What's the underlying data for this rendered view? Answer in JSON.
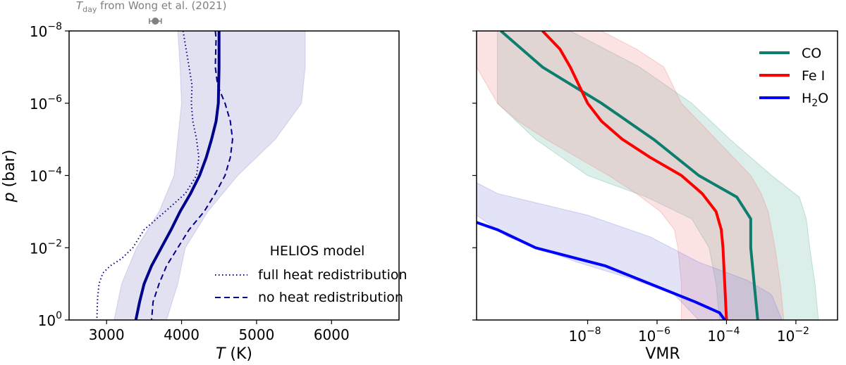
{
  "chart_data": [
    {
      "type": "line",
      "panel": "left",
      "xlabel_italic": "T",
      "xlabel_unit": " (K)",
      "ylabel_italic": "p",
      "ylabel_unit": " (bar)",
      "xlim": [
        2500,
        6900
      ],
      "xscale": "linear",
      "yscale": "log",
      "ylim": [
        1,
        1e-08
      ],
      "xticks": [
        3000,
        4000,
        5000,
        6000
      ],
      "yticks": [
        {
          "value": 1e-08,
          "base": "10",
          "exp": "−8"
        },
        {
          "value": 1e-06,
          "base": "10",
          "exp": "−6"
        },
        {
          "value": 0.0001,
          "base": "10",
          "exp": "−4"
        },
        {
          "value": 0.01,
          "base": "10",
          "exp": "−2"
        },
        {
          "value": 1,
          "base": "10",
          "exp": "0"
        }
      ],
      "band": {
        "color": "#1a1a9e",
        "logp": [
          -8,
          -7,
          -6,
          -5,
          -4,
          -3,
          -2,
          -1,
          0
        ],
        "lower": [
          3950,
          3980,
          4000,
          3950,
          3900,
          3700,
          3400,
          3200,
          3100
        ],
        "upper": [
          5650,
          5650,
          5600,
          5250,
          4750,
          4350,
          4050,
          3950,
          3800
        ]
      },
      "series": [
        {
          "name": "retrieved",
          "color": "#00008b",
          "style": "solid",
          "logp": [
            -8,
            -7,
            -6,
            -5.5,
            -5,
            -4.5,
            -4,
            -3.5,
            -3,
            -2.5,
            -2,
            -1.5,
            -1,
            -0.5,
            0
          ],
          "T": [
            4500,
            4500,
            4490,
            4460,
            4400,
            4330,
            4240,
            4120,
            3980,
            3860,
            3730,
            3600,
            3500,
            3440,
            3390
          ]
        },
        {
          "name": "full heat redistribution",
          "color": "#00008b",
          "style": "dotted",
          "logp": [
            -8,
            -7.5,
            -7,
            -6.5,
            -6,
            -5.5,
            -5,
            -4.5,
            -4,
            -3.5,
            -3,
            -2.5,
            -2,
            -1.7,
            -1.5,
            -1.3,
            -1,
            -0.6,
            0
          ],
          "T": [
            4020,
            4060,
            4100,
            4140,
            4130,
            4150,
            4200,
            4230,
            4200,
            4050,
            3780,
            3500,
            3350,
            3200,
            3050,
            2950,
            2900,
            2880,
            2870
          ]
        },
        {
          "name": "no heat redistribution",
          "color": "#00008b",
          "style": "dashed",
          "logp": [
            -8,
            -7.8,
            -7,
            -6.5,
            -6,
            -5.5,
            -5,
            -4.5,
            -4,
            -3.5,
            -3,
            -2.5,
            -2,
            -1.5,
            -1,
            -0.5,
            0
          ],
          "T": [
            4450,
            4460,
            4450,
            4480,
            4580,
            4650,
            4680,
            4650,
            4580,
            4450,
            4300,
            4100,
            3950,
            3800,
            3700,
            3620,
            3600
          ]
        }
      ],
      "legend": {
        "title": "HELIOS model",
        "entries": [
          "full heat redistribution",
          "no heat redistribution"
        ],
        "location": "lower-right"
      },
      "annotation": {
        "sym": "T",
        "sub": "day",
        "text": " from Wong et al. (2021)",
        "value_T": 3650,
        "err_T": 80
      }
    },
    {
      "type": "line",
      "panel": "right",
      "xlabel": "VMR",
      "xscale": "log",
      "yscale": "log",
      "xlim_log10": [
        -11.2,
        -0.8
      ],
      "ylim": [
        1,
        1e-08
      ],
      "xticks": [
        {
          "log10": -8,
          "base": "10",
          "exp": "−8"
        },
        {
          "log10": -6,
          "base": "10",
          "exp": "−6"
        },
        {
          "log10": -4,
          "base": "10",
          "exp": "−4"
        },
        {
          "log10": -2,
          "base": "10",
          "exp": "−2"
        }
      ],
      "series": [
        {
          "name": "CO",
          "color": "#0d7d6e",
          "band_color": "#5fb3a0",
          "logp": [
            -8,
            -7,
            -6,
            -5,
            -4,
            -3.4,
            -2.8,
            -2,
            -1,
            0
          ],
          "logvmr": [
            -10.5,
            -9.3,
            -7.6,
            -6.1,
            -4.8,
            -3.7,
            -3.3,
            -3.3,
            -3.2,
            -3.1
          ],
          "band_lower": [
            -10.6,
            -10.6,
            -10.6,
            -9.5,
            -8.0,
            -6.3,
            -5.0,
            -4.5,
            -4.3,
            -4.2
          ],
          "band_upper": [
            -8.5,
            -6.5,
            -5.0,
            -3.9,
            -2.7,
            -1.9,
            -1.7,
            -1.6,
            -1.45,
            -1.35
          ]
        },
        {
          "name": "Fe I",
          "color": "#ff0000",
          "band_color": "#f08080",
          "logp": [
            -8,
            -7.5,
            -7,
            -6,
            -5.5,
            -5,
            -4.5,
            -4,
            -3.5,
            -3,
            -2.5,
            -2,
            -1,
            0
          ],
          "logvmr": [
            -9.3,
            -8.8,
            -8.5,
            -8.0,
            -7.6,
            -7.0,
            -6.2,
            -5.3,
            -4.7,
            -4.3,
            -4.15,
            -4.1,
            -4.05,
            -4.0
          ],
          "band_lower": [
            -11.2,
            -11.2,
            -11.2,
            -10.6,
            -10.0,
            -9.2,
            -8.3,
            -7.4,
            -6.6,
            -5.9,
            -5.5,
            -5.4,
            -5.3,
            -5.3
          ],
          "band_upper": [
            -7.6,
            -6.6,
            -5.8,
            -5.3,
            -4.8,
            -4.3,
            -3.8,
            -3.3,
            -3.0,
            -2.8,
            -2.7,
            -2.6,
            -2.45,
            -2.35
          ]
        },
        {
          "name": "H2O",
          "legend_base": "H",
          "legend_sub": "2",
          "legend_tail": "O",
          "color": "#0000ff",
          "band_color": "#8080e0",
          "logp": [
            -2.7,
            -2.5,
            -2,
            -1.5,
            -1,
            -0.5,
            -0.2,
            0
          ],
          "logvmr": [
            -11.2,
            -10.6,
            -9.5,
            -7.5,
            -6.2,
            -4.9,
            -4.2,
            -4.05
          ],
          "band_lower": [
            -11.2,
            -11.2,
            -11.2,
            -10.3,
            -8.3,
            -6.6,
            -5.5,
            -4.8
          ],
          "band_upper": [
            -11.2,
            -10.6,
            -8.0,
            -6.2,
            -4.8,
            -3.4,
            -2.7,
            -2.4
          ],
          "band_logp": [
            -3.8,
            -3.5,
            -2.9,
            -2.3,
            -1.6,
            -1.1,
            -0.7,
            0
          ]
        }
      ],
      "legend": {
        "location": "top-right"
      }
    }
  ]
}
